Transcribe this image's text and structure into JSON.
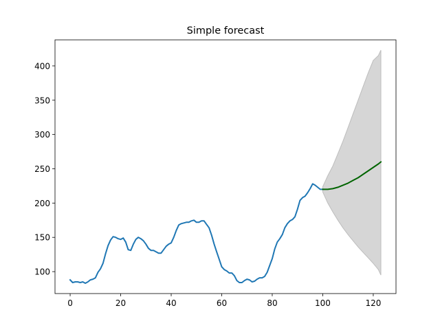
{
  "chart_data": {
    "type": "line",
    "title": "Simple forecast",
    "xlabel": "",
    "ylabel": "",
    "xlim": [
      -6,
      129
    ],
    "ylim": [
      68,
      438
    ],
    "x_ticks": [
      0,
      20,
      40,
      60,
      80,
      100,
      120
    ],
    "y_ticks": [
      100,
      150,
      200,
      250,
      300,
      350,
      400
    ],
    "grid": false,
    "series": [
      {
        "role": "history",
        "color": "#1f77b4",
        "x": [
          0,
          1,
          2,
          3,
          4,
          5,
          6,
          7,
          8,
          9,
          10,
          11,
          12,
          13,
          14,
          15,
          16,
          17,
          18,
          19,
          20,
          21,
          22,
          23,
          24,
          25,
          26,
          27,
          28,
          29,
          30,
          31,
          32,
          33,
          34,
          35,
          36,
          37,
          38,
          39,
          40,
          41,
          42,
          43,
          44,
          45,
          46,
          47,
          48,
          49,
          50,
          51,
          52,
          53,
          54,
          55,
          56,
          57,
          58,
          59,
          60,
          61,
          62,
          63,
          64,
          65,
          66,
          67,
          68,
          69,
          70,
          71,
          72,
          73,
          74,
          75,
          76,
          77,
          78,
          79,
          80,
          81,
          82,
          83,
          84,
          85,
          86,
          87,
          88,
          89,
          90,
          91,
          92,
          93,
          94,
          95,
          96,
          97,
          98,
          99,
          100
        ],
        "y": [
          88,
          84,
          85,
          85,
          84,
          85,
          83,
          85,
          88,
          89,
          91,
          99,
          104,
          112,
          126,
          138,
          146,
          151,
          150,
          148,
          147,
          149,
          143,
          132,
          131,
          140,
          147,
          150,
          148,
          145,
          140,
          134,
          131,
          131,
          129,
          127,
          127,
          132,
          137,
          140,
          142,
          150,
          160,
          168,
          170,
          171,
          172,
          172,
          174,
          175,
          172,
          172,
          174,
          174,
          169,
          164,
          153,
          140,
          129,
          118,
          107,
          103,
          101,
          98,
          98,
          94,
          87,
          84,
          84,
          87,
          89,
          88,
          85,
          86,
          89,
          91,
          91,
          93,
          99,
          109,
          119,
          133,
          143,
          148,
          154,
          164,
          170,
          174,
          176,
          180,
          191,
          204,
          208,
          210,
          215,
          221,
          228,
          226,
          223,
          220,
          220
        ]
      },
      {
        "role": "forecast",
        "color": "#006400",
        "x": [
          100,
          102,
          104,
          106,
          108,
          110,
          112,
          114,
          116,
          118,
          120,
          122,
          123
        ],
        "y": [
          220,
          220,
          221,
          223,
          226,
          229,
          233,
          237,
          242,
          247,
          252,
          257,
          260
        ]
      }
    ],
    "confidence_band": {
      "color": "#d6d6d6",
      "edge_color": "#bdbdbd",
      "x": [
        100,
        102,
        104,
        106,
        108,
        110,
        112,
        114,
        116,
        118,
        120,
        122,
        123
      ],
      "lower": [
        216,
        200,
        187,
        175,
        164,
        154,
        145,
        136,
        128,
        120,
        112,
        103,
        95
      ],
      "upper": [
        224,
        240,
        254,
        272,
        290,
        310,
        330,
        350,
        370,
        390,
        408,
        415,
        423
      ]
    }
  }
}
